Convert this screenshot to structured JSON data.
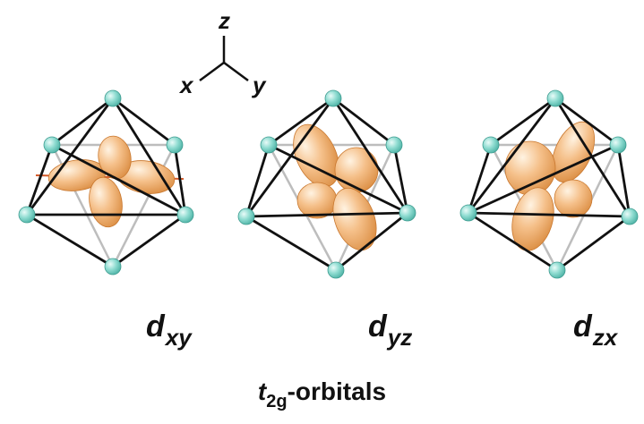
{
  "axes": {
    "z": "z",
    "x": "x",
    "y": "y"
  },
  "orbitals": [
    {
      "id": "dxy",
      "d": "d",
      "sub": "xy"
    },
    {
      "id": "dyz",
      "d": "d",
      "sub": "yz"
    },
    {
      "id": "dzx",
      "d": "d",
      "sub": "zx"
    }
  ],
  "caption": {
    "t": "t",
    "sub": "2g",
    "rest": "-orbitals"
  },
  "colors": {
    "edge": "#111111",
    "hidden_edge": "#bdbdbd",
    "ligand": "#7fd8cc",
    "lobe": "#eaa05a",
    "lobe_highlight": "#fde7cc"
  }
}
